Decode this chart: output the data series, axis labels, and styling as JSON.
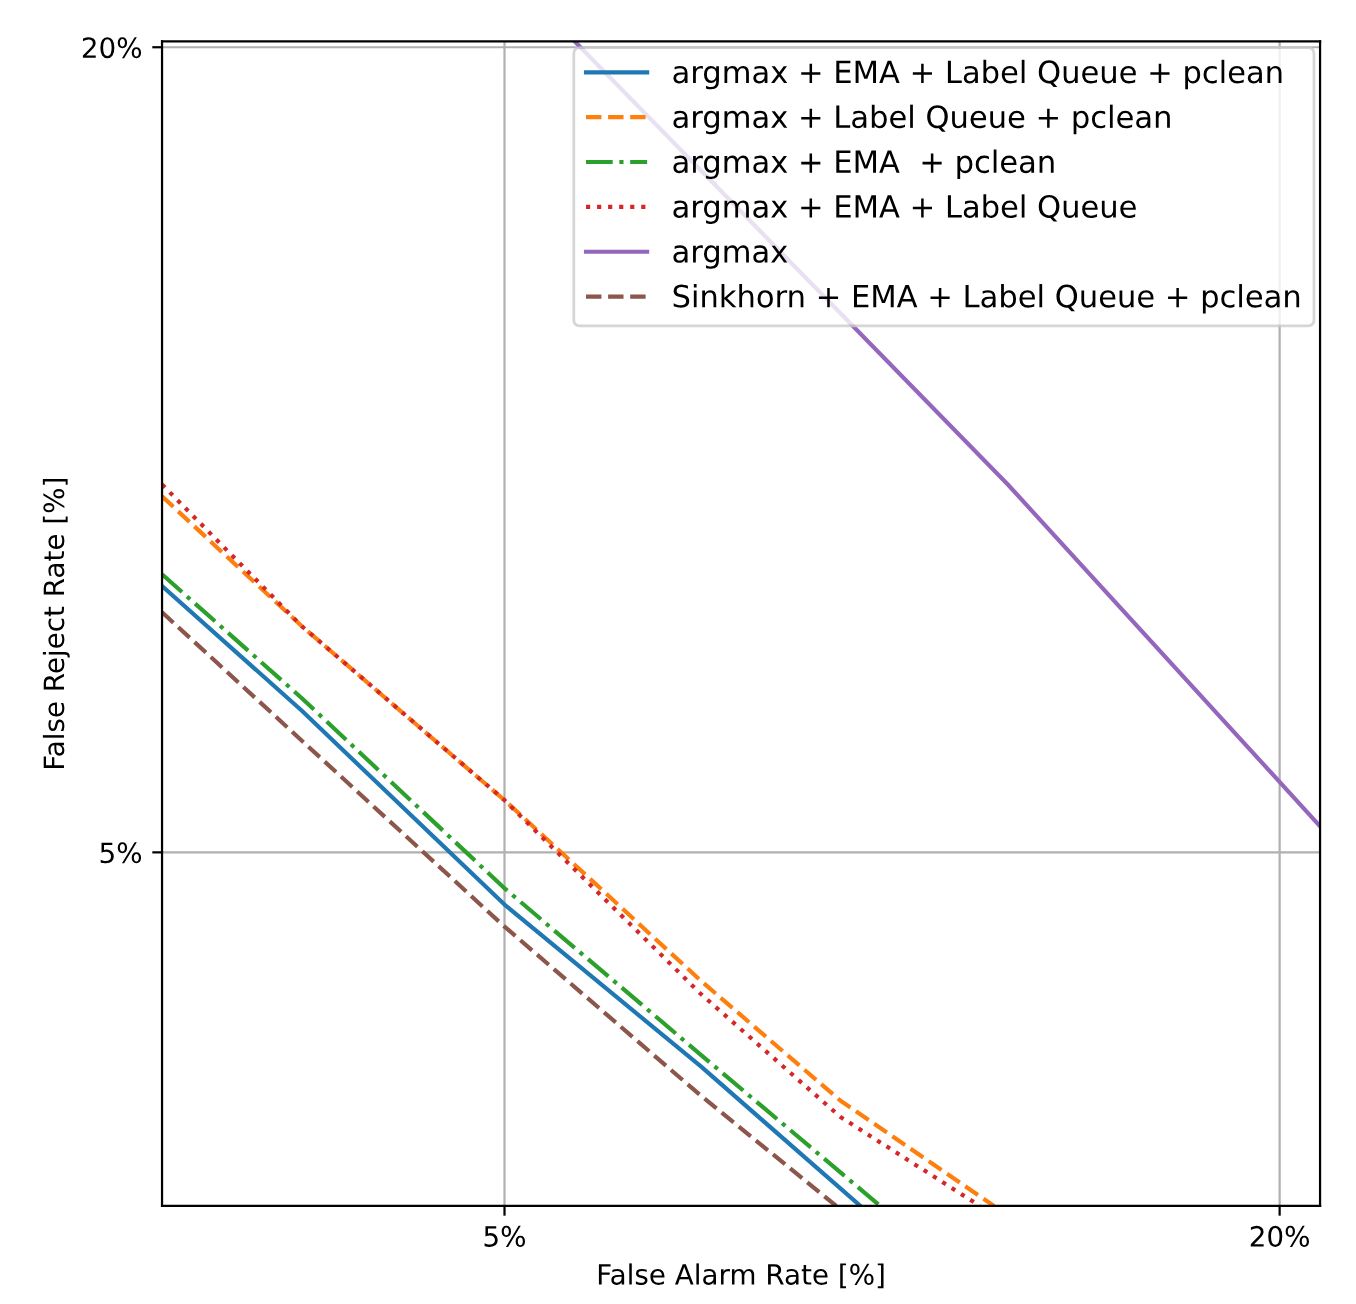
{
  "chart_data": {
    "type": "line",
    "xlabel": "False Alarm Rate [%]",
    "ylabel": "False Reject Rate [%]",
    "log": "xy",
    "xlim": [
      2.71,
      21.5
    ],
    "ylim": [
      2.72,
      20.2
    ],
    "xticks": [
      {
        "value": 5,
        "label": "5%"
      },
      {
        "value": 20,
        "label": "20%"
      }
    ],
    "yticks": [
      {
        "value": 5,
        "label": "5%"
      },
      {
        "value": 20,
        "label": "20%"
      }
    ],
    "grid": true,
    "legend": "top right",
    "series": [
      {
        "name": "argmax + EMA + Label Queue + pclean",
        "color": "#1f77b4",
        "line_style": "solid",
        "x": [
          2.71,
          3.48,
          5.0,
          7.1,
          9.45
        ],
        "values": [
          7.91,
          6.38,
          4.57,
          3.46,
          2.72
        ]
      },
      {
        "name": "argmax + Label Queue + pclean",
        "color": "#ff7f0e",
        "line_style": "dashed",
        "x": [
          2.71,
          3.48,
          5.0,
          7.1,
          9.12,
          12.0
        ],
        "values": [
          9.23,
          7.38,
          5.47,
          4.01,
          3.26,
          2.72
        ]
      },
      {
        "name": "argmax + EMA  + pclean",
        "color": "#2ca02c",
        "line_style": "dashdot",
        "x": [
          2.71,
          3.48,
          5.0,
          7.1,
          9.79
        ],
        "values": [
          8.07,
          6.52,
          4.7,
          3.53,
          2.72
        ]
      },
      {
        "name": "argmax + EMA + Label Queue",
        "color": "#d62728",
        "line_style": "dotted",
        "x": [
          2.71,
          3.48,
          5.0,
          7.1,
          9.12,
          11.7
        ],
        "values": [
          9.42,
          7.38,
          5.47,
          3.92,
          3.17,
          2.72
        ]
      },
      {
        "name": "argmax",
        "color": "#9467bd",
        "line_style": "solid",
        "x": [
          5.67,
          12.3,
          21.5
        ],
        "values": [
          20.2,
          9.42,
          5.23
        ]
      },
      {
        "name": "Sinkhorn + EMA + Label Queue + pclean",
        "color": "#8c564b",
        "line_style": "dashed",
        "x": [
          2.71,
          3.48,
          5.0,
          7.1,
          9.05
        ],
        "values": [
          7.56,
          6.06,
          4.4,
          3.29,
          2.72
        ]
      }
    ]
  }
}
